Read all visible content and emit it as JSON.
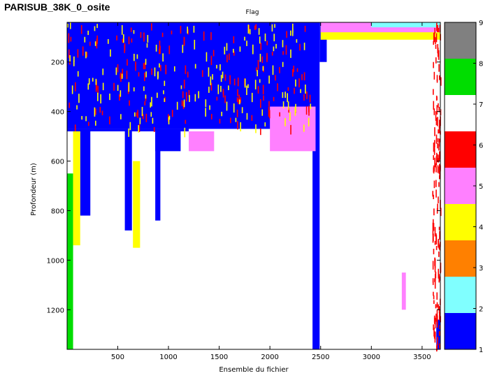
{
  "window": {
    "title": "PARISUB_38K_0_osite"
  },
  "chart_data": {
    "type": "heatmap",
    "title": "Flag",
    "xlabel": "Ensemble du fichier",
    "ylabel": "Profondeur (m)",
    "xlim": [
      1,
      3680
    ],
    "ylim": [
      1360,
      40
    ],
    "y_reversed": true,
    "x_ticks": [
      "500",
      "1000",
      "1500",
      "2000",
      "2500",
      "3000",
      "3500"
    ],
    "x_tick_values": [
      500,
      1000,
      1500,
      2000,
      2500,
      3000,
      3500
    ],
    "y_ticks": [
      "200",
      "400",
      "600",
      "800",
      "1000",
      "1200"
    ],
    "y_tick_values": [
      200,
      400,
      600,
      800,
      1000,
      1200
    ],
    "colorbar": {
      "ticks": [
        "1",
        "2",
        "3",
        "4",
        "5",
        "6",
        "7",
        "8",
        "9"
      ],
      "levels": [
        {
          "flag": 1,
          "color": "#0000ff"
        },
        {
          "flag": 2,
          "color": "#80ffff"
        },
        {
          "flag": 3,
          "color": "#ff8000"
        },
        {
          "flag": 4,
          "color": "#ffff00"
        },
        {
          "flag": 5,
          "color": "#ff80ff"
        },
        {
          "flag": 6,
          "color": "#ff0000"
        },
        {
          "flag": 7,
          "color": "#ffffff"
        },
        {
          "flag": 8,
          "color": "#00dd00"
        },
        {
          "flag": 9,
          "color": "#808080"
        }
      ]
    },
    "regions": [
      {
        "flag": 7,
        "x": [
          1,
          3680
        ],
        "y": [
          40,
          1360
        ],
        "note": "background"
      },
      {
        "flag": 1,
        "x": [
          1,
          2450
        ],
        "y": [
          40,
          470
        ]
      },
      {
        "flag": 1,
        "x": [
          1,
          1200
        ],
        "y": [
          470,
          480
        ]
      },
      {
        "flag": 1,
        "x": [
          870,
          1120
        ],
        "y": [
          470,
          560
        ]
      },
      {
        "flag": 1,
        "x": [
          130,
          230
        ],
        "y": [
          470,
          820
        ]
      },
      {
        "flag": 1,
        "x": [
          570,
          640
        ],
        "y": [
          470,
          880
        ]
      },
      {
        "flag": 1,
        "x": [
          870,
          920
        ],
        "y": [
          470,
          840
        ]
      },
      {
        "flag": 1,
        "x": [
          2420,
          2490
        ],
        "y": [
          40,
          1360
        ]
      },
      {
        "flag": 1,
        "x": [
          2490,
          2560
        ],
        "y": [
          40,
          200
        ]
      },
      {
        "flag": 1,
        "x": [
          3640,
          3680
        ],
        "y": [
          1240,
          1360
        ]
      },
      {
        "flag": 8,
        "x": [
          1,
          60
        ],
        "y": [
          650,
          1360
        ]
      },
      {
        "flag": 8,
        "x": [
          3660,
          3680
        ],
        "y": [
          40,
          60
        ]
      },
      {
        "flag": 4,
        "x": [
          2500,
          3680
        ],
        "y": [
          40,
          110
        ]
      },
      {
        "flag": 5,
        "x": [
          2500,
          3680
        ],
        "y": [
          40,
          80
        ]
      },
      {
        "flag": 2,
        "x": [
          3000,
          3680
        ],
        "y": [
          40,
          60
        ]
      },
      {
        "flag": 4,
        "x": [
          60,
          130
        ],
        "y": [
          480,
          940
        ]
      },
      {
        "flag": 4,
        "x": [
          650,
          720
        ],
        "y": [
          600,
          950
        ]
      },
      {
        "flag": 5,
        "x": [
          1200,
          1450
        ],
        "y": [
          480,
          560
        ]
      },
      {
        "flag": 6,
        "x": [
          1,
          2400
        ],
        "y": [
          40,
          470
        ],
        "note": "scattered flags within flag-1 block"
      },
      {
        "flag": 4,
        "x": [
          1,
          2400
        ],
        "y": [
          40,
          470
        ],
        "note": "scattered flags within flag-1 block"
      },
      {
        "flag": 5,
        "x": [
          2000,
          2450
        ],
        "y": [
          380,
          560
        ]
      },
      {
        "flag": 5,
        "x": [
          3300,
          3340
        ],
        "y": [
          1050,
          1200
        ]
      },
      {
        "flag": 6,
        "x": [
          3600,
          3680
        ],
        "y": [
          40,
          1360
        ],
        "note": "scattered near right edge"
      }
    ]
  }
}
